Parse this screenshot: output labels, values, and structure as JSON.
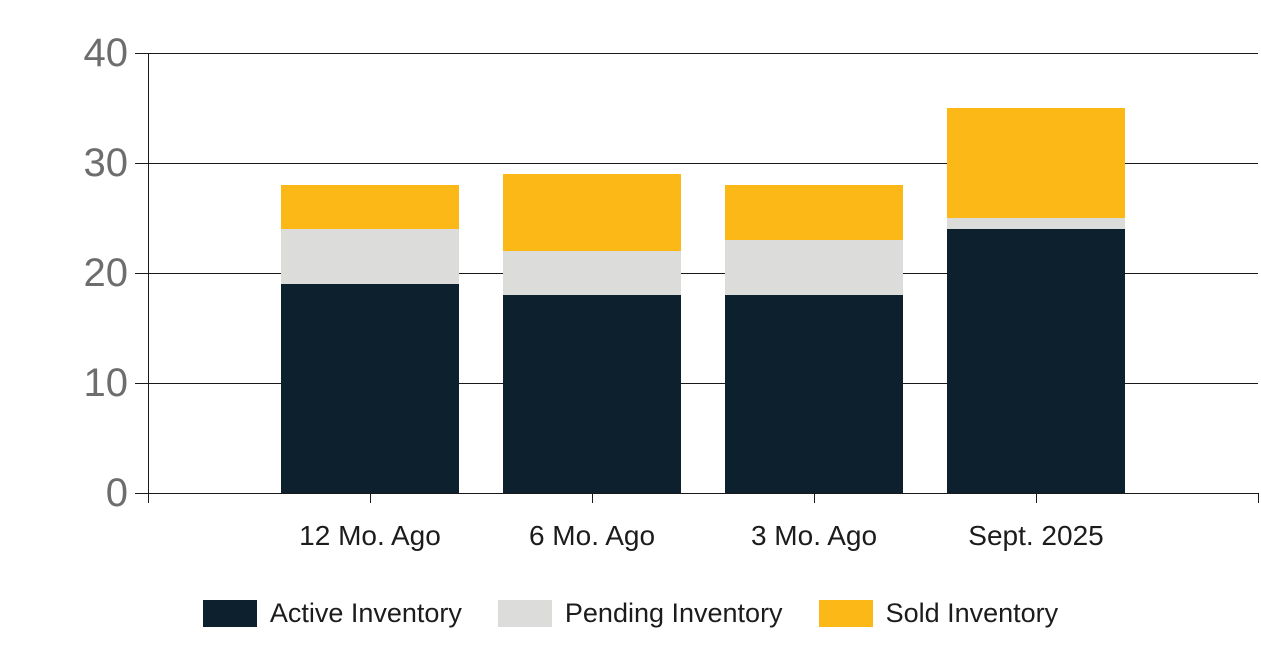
{
  "chart_data": {
    "type": "bar",
    "stacked": true,
    "title": "",
    "xlabel": "",
    "ylabel": "",
    "categories": [
      "12 Mo. Ago",
      "6 Mo. Ago",
      "3 Mo. Ago",
      "Sept. 2025"
    ],
    "series": [
      {
        "name": "Active Inventory",
        "color": "#0d202d",
        "values": [
          19,
          18,
          18,
          24
        ]
      },
      {
        "name": "Pending Inventory",
        "color": "#dcdcda",
        "values": [
          5,
          4,
          5,
          1
        ]
      },
      {
        "name": "Sold Inventory",
        "color": "#fbb816",
        "values": [
          4,
          7,
          5,
          10
        ]
      }
    ],
    "stack_totals": [
      28,
      29,
      28,
      35
    ],
    "y_axis": {
      "min": 0,
      "max": 40,
      "ticks": [
        0,
        10,
        20,
        30,
        40
      ]
    },
    "grid": true,
    "legend_position": "bottom"
  },
  "colors": {
    "background": "#ffffff",
    "grid_line": "#1a1a1a",
    "axis_line": "#1a1a1a",
    "y_tick_label": "#6d6d6d",
    "x_tick_label": "#1c1c1c",
    "legend_label": "#1c1c1c"
  }
}
